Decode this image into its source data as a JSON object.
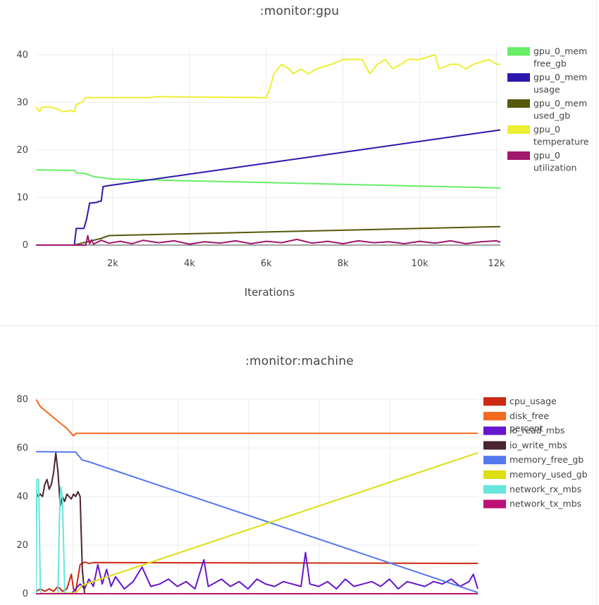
{
  "chart_data": [
    {
      "type": "line",
      "title": ":monitor:gpu",
      "xlabel": "Iterations",
      "ylabel": "",
      "xlim": [
        0,
        12100
      ],
      "ylim": [
        0,
        41
      ],
      "x_ticks": [
        2000,
        4000,
        6000,
        8000,
        10000,
        12000
      ],
      "x_tick_labels": [
        "2k",
        "4k",
        "6k",
        "8k",
        "10k",
        "12k"
      ],
      "y_ticks": [
        0,
        10,
        20,
        30,
        40
      ],
      "grid": true,
      "legend_position": "right",
      "series": [
        {
          "name": "gpu_0_mem free_gb",
          "legend_lines": [
            "gpu_0_mem",
            "free_gb"
          ],
          "color": "#66ee66",
          "x": [
            0,
            1000,
            1050,
            1300,
            1500,
            1700,
            1950,
            12100
          ],
          "y": [
            15.8,
            15.7,
            15.2,
            15.0,
            14.4,
            14.2,
            13.9,
            12.0
          ]
        },
        {
          "name": "gpu_0_mem usage",
          "legend_lines": [
            "gpu_0_mem",
            "usage"
          ],
          "color": "#2a18b0",
          "x": [
            0,
            1000,
            1050,
            1250,
            1320,
            1400,
            1600,
            1650,
            1700,
            1750,
            1900,
            12100
          ],
          "y": [
            0,
            0,
            3.5,
            3.5,
            5.5,
            8.8,
            9.0,
            9.2,
            9.2,
            12.3,
            12.5,
            24.2
          ]
        },
        {
          "name": "gpu_0_mem used_gb",
          "legend_lines": [
            "gpu_0_mem",
            "used_gb"
          ],
          "color": "#56580a",
          "x": [
            0,
            1000,
            1300,
            1500,
            1700,
            1900,
            12100
          ],
          "y": [
            0,
            0,
            0.6,
            1.0,
            1.4,
            2.0,
            3.9
          ]
        },
        {
          "name": "gpu_0 temperature",
          "legend_lines": [
            "gpu_0",
            "temperature"
          ],
          "color": "#eeee33",
          "x": [
            0,
            100,
            150,
            400,
            600,
            700,
            900,
            1000,
            1050,
            1200,
            1300,
            3000,
            3100,
            6000,
            6100,
            6200,
            6300,
            6400,
            6600,
            6700,
            6900,
            7100,
            7300,
            7500,
            7700,
            8000,
            8500,
            8700,
            8900,
            9100,
            9300,
            9500,
            9700,
            9800,
            10000,
            10400,
            10500,
            10800,
            11000,
            11200,
            11400,
            11800,
            12000,
            12100
          ],
          "y": [
            29,
            28,
            29,
            29,
            28.5,
            28,
            28.3,
            28,
            29.5,
            30,
            31,
            31,
            31.2,
            31,
            33,
            36,
            37,
            38,
            37,
            36,
            37,
            36,
            37,
            37.5,
            38,
            39,
            39,
            36,
            38,
            39,
            37,
            38,
            39,
            39,
            39,
            40,
            37,
            38,
            38,
            37,
            38,
            39,
            38,
            38
          ]
        },
        {
          "name": "gpu_0 utilization",
          "legend_lines": [
            "gpu_0",
            "utilization"
          ],
          "color": "#a0176c",
          "x": [
            0,
            1300,
            1350,
            1400,
            1450,
            1500,
            1700,
            1900,
            2200,
            2500,
            2800,
            3200,
            3600,
            4000,
            4400,
            4800,
            5200,
            5600,
            6000,
            6400,
            6800,
            7200,
            7600,
            8000,
            8400,
            8800,
            9200,
            9600,
            10000,
            10400,
            10800,
            11200,
            11600,
            12000,
            12100
          ],
          "y": [
            0,
            0,
            2.0,
            0.3,
            1.1,
            0.2,
            1.0,
            0.4,
            0.8,
            0.3,
            1.0,
            0.5,
            0.9,
            0.2,
            0.7,
            0.4,
            0.9,
            0.3,
            0.8,
            0.5,
            1.2,
            0.4,
            0.8,
            0.3,
            0.9,
            0.5,
            0.7,
            0.3,
            0.8,
            0.4,
            0.9,
            0.3,
            0.7,
            0.9,
            0.6
          ]
        }
      ]
    },
    {
      "type": "line",
      "title": ":monitor:machine",
      "xlabel": "",
      "ylabel": "",
      "xlim": [
        0,
        100
      ],
      "ylim": [
        0,
        80
      ],
      "x_ticks": [],
      "x_tick_labels": [],
      "y_ticks": [
        0,
        20,
        40,
        60,
        80
      ],
      "grid": true,
      "legend_position": "right",
      "series": [
        {
          "name": "cpu_usage",
          "legend_lines": [
            "cpu_usage"
          ],
          "color": "#cc2a12",
          "x": [
            0,
            1,
            2,
            3,
            4,
            5,
            5.5,
            6,
            7,
            8,
            8.5,
            9,
            10,
            11,
            12,
            13,
            100
          ],
          "y": [
            1,
            2,
            1,
            2,
            1,
            3,
            2,
            1,
            2,
            8,
            2,
            1,
            12,
            13,
            12.5,
            12.8,
            12.5
          ]
        },
        {
          "name": "disk_free percent",
          "legend_lines": [
            "disk_free",
            "percent"
          ],
          "color": "#f26a1e",
          "x": [
            0,
            1,
            3,
            5,
            7,
            8.5,
            9,
            100
          ],
          "y": [
            80,
            77,
            74,
            71,
            68,
            65,
            66,
            66
          ]
        },
        {
          "name": "io_read_mbs",
          "legend_lines": [
            "io_read_mbs"
          ],
          "color": "#6616cc",
          "x": [
            0,
            8,
            10,
            11,
            12,
            13,
            14,
            15,
            16,
            17,
            18,
            20,
            22,
            24,
            26,
            28,
            30,
            32,
            34,
            36,
            38,
            39,
            40,
            42,
            44,
            46,
            48,
            50,
            52,
            54,
            56,
            58,
            60,
            61,
            62,
            64,
            66,
            68,
            70,
            72,
            74,
            76,
            78,
            80,
            82,
            84,
            86,
            88,
            90,
            92,
            94,
            96,
            98,
            99,
            100
          ],
          "y": [
            0,
            0,
            4,
            2,
            6,
            3,
            12,
            4,
            10,
            3,
            7,
            2,
            5,
            11,
            3,
            4,
            6,
            3,
            5,
            2,
            14,
            3,
            4,
            6,
            3,
            5,
            2,
            6,
            4,
            3,
            5,
            4,
            3,
            17,
            4,
            3,
            5,
            2,
            6,
            3,
            4,
            5,
            3,
            6,
            2,
            5,
            4,
            3,
            5,
            4,
            6,
            3,
            5,
            8,
            2
          ]
        },
        {
          "name": "io_write_mbs",
          "legend_lines": [
            "io_write_mbs"
          ],
          "color": "#4a2430",
          "x": [
            0,
            0.5,
            1,
            1.5,
            2,
            2.5,
            3,
            3.5,
            4,
            4.5,
            5,
            5.5,
            6,
            6.5,
            7,
            7.5,
            8,
            8.5,
            9,
            9.5,
            10,
            10.5,
            11,
            100
          ],
          "y": [
            42,
            40,
            41,
            40,
            45,
            47,
            43,
            45,
            50,
            58,
            50,
            36,
            40,
            38,
            41,
            40,
            39,
            41,
            40,
            42,
            40,
            10,
            0,
            0
          ]
        },
        {
          "name": "memory_free_gb",
          "legend_lines": [
            "memory_free_gb"
          ],
          "color": "#5577ee",
          "x": [
            0,
            9,
            10.5,
            12,
            100
          ],
          "y": [
            58.5,
            58.3,
            55,
            54.3,
            0.5
          ]
        },
        {
          "name": "memory_used_gb",
          "legend_lines": [
            "memory_used_gb"
          ],
          "color": "#dddd11",
          "x": [
            0,
            9,
            10.5,
            100
          ],
          "y": [
            0,
            0.3,
            3.5,
            58
          ]
        },
        {
          "name": "network_rx_mbs",
          "legend_lines": [
            "network_rx_mbs"
          ],
          "color": "#66e6dd",
          "x": [
            0,
            0.2,
            0.6,
            1,
            1.5,
            5,
            5.3,
            5.6,
            6,
            6.5,
            7,
            100
          ],
          "y": [
            0,
            47,
            47,
            1,
            0,
            0,
            30,
            44,
            40,
            1,
            0,
            0
          ]
        },
        {
          "name": "network_tx_mbs",
          "legend_lines": [
            "network_tx_mbs"
          ],
          "color": "#bb1177",
          "x": [
            0,
            100
          ],
          "y": [
            0,
            0
          ]
        }
      ]
    }
  ]
}
